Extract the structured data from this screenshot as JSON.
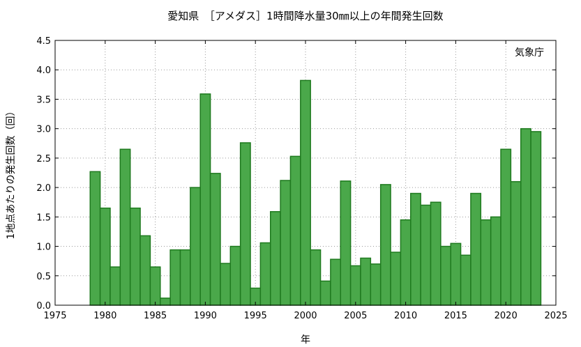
{
  "chart_data": {
    "type": "bar",
    "title": "愛知県　［アメダス］1時間降水量30㎜以上の年間発生回数",
    "xlabel": "年",
    "ylabel": "1地点あたりの発生回数（回）",
    "source_note": "気象庁",
    "xlim": [
      1975,
      2025
    ],
    "ylim": [
      0,
      4.5
    ],
    "grid": true,
    "x_ticks": [
      "1975",
      "1980",
      "1985",
      "1990",
      "1995",
      "2000",
      "2005",
      "2010",
      "2015",
      "2020",
      "2025"
    ],
    "y_ticks": [
      "0.0",
      "0.5",
      "1.0",
      "1.5",
      "2.0",
      "2.5",
      "3.0",
      "3.5",
      "4.0",
      "4.5"
    ],
    "series": [
      {
        "color": "#4aa84a",
        "x": [
          1979,
          1980,
          1981,
          1982,
          1983,
          1984,
          1985,
          1986,
          1987,
          1988,
          1989,
          1990,
          1991,
          1992,
          1993,
          1994,
          1995,
          1996,
          1997,
          1998,
          1999,
          2000,
          2001,
          2002,
          2003,
          2004,
          2005,
          2006,
          2007,
          2008,
          2009,
          2010,
          2011,
          2012,
          2013,
          2014,
          2015,
          2016,
          2017,
          2018,
          2019,
          2020,
          2021,
          2022,
          2023
        ],
        "values": [
          2.27,
          1.65,
          0.65,
          2.65,
          1.65,
          1.18,
          0.65,
          0.12,
          0.94,
          0.94,
          2.0,
          3.59,
          2.24,
          0.71,
          1.0,
          2.76,
          0.29,
          1.06,
          1.59,
          2.12,
          2.53,
          3.82,
          0.94,
          0.41,
          0.78,
          2.11,
          0.67,
          0.8,
          0.7,
          2.05,
          0.9,
          1.45,
          1.9,
          1.7,
          1.75,
          1.0,
          1.05,
          0.85,
          1.9,
          1.45,
          1.5,
          2.65,
          2.1,
          3.0,
          2.95
        ]
      }
    ]
  }
}
